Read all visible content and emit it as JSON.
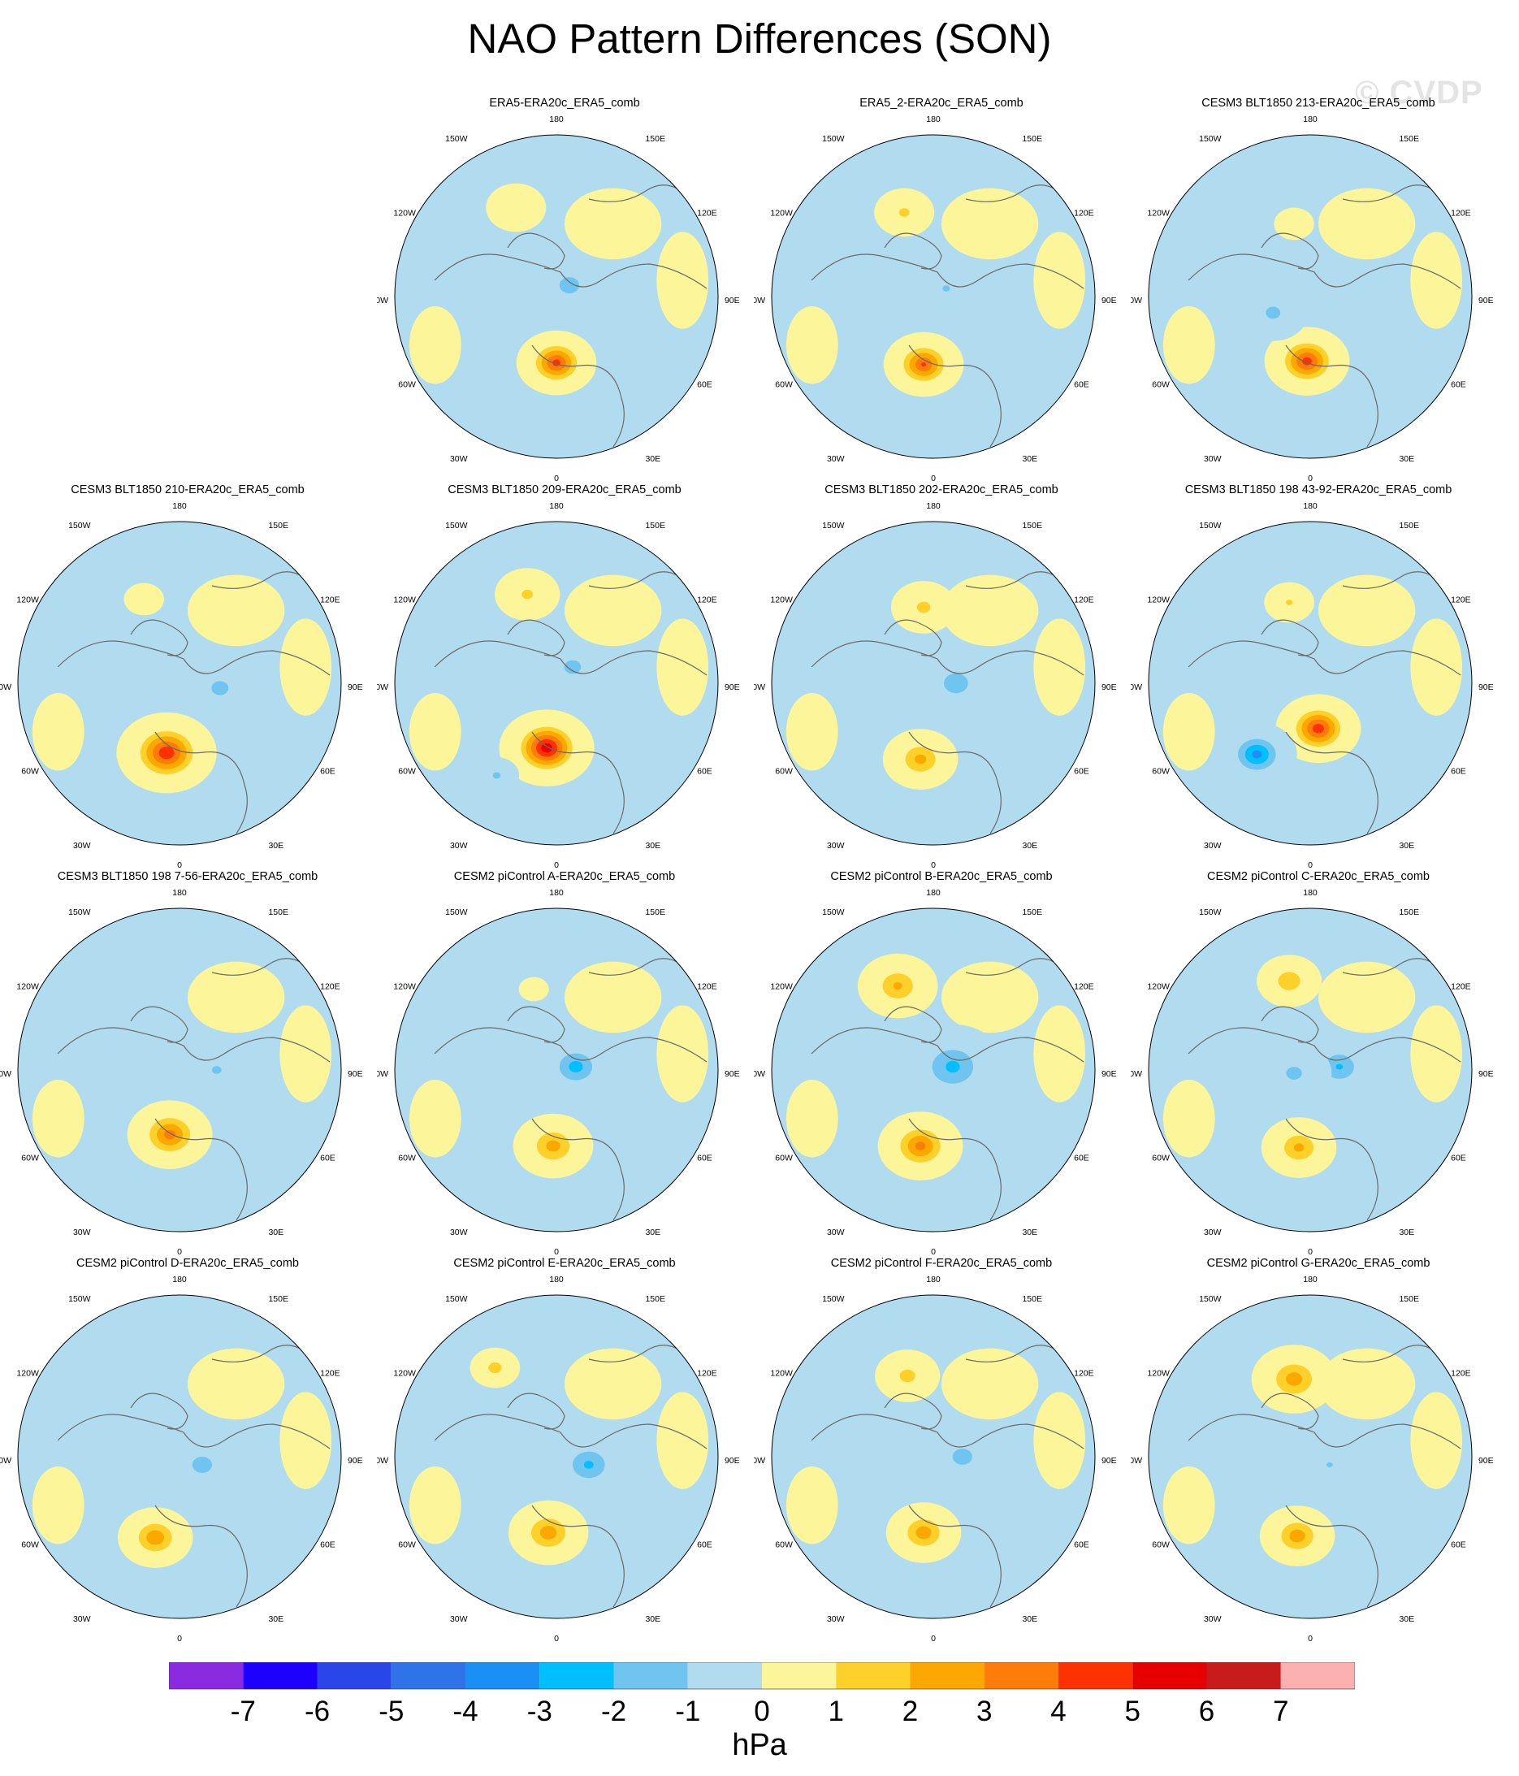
{
  "title": "NAO Pattern Differences (SON)",
  "watermark": "© CVDP",
  "units_label": "hPa",
  "colorbar": {
    "colors": [
      "#8a2be2",
      "#1e00ff",
      "#2a46e8",
      "#2e73e8",
      "#1a8ff5",
      "#00bfff",
      "#70c5f0",
      "#b1dcf0",
      "#fdf59a",
      "#fdd12a",
      "#fda800",
      "#fd7c0a",
      "#fd3200",
      "#e70000",
      "#c81b1b",
      "#fcb0b0"
    ],
    "tick_labels": [
      "-7",
      "-6",
      "-5",
      "-4",
      "-3",
      "-2",
      "-1",
      "0",
      "1",
      "2",
      "3",
      "4",
      "5",
      "6",
      "7"
    ]
  },
  "map_labels": {
    "top": "180",
    "top_left": "150W",
    "top_right": "150E",
    "upper_left": "120W",
    "upper_right": "120E",
    "left": "90W",
    "right": "90E",
    "lower_left": "60W",
    "lower_right": "60E",
    "bottom_left": "30W",
    "bottom_right": "30E",
    "bottom": "0"
  },
  "panels": [
    {
      "title": "ERA5-ERA20c_ERA5_comb",
      "features": [
        {
          "type": "pos",
          "v": 4.5,
          "u": 0.0,
          "w": 0.41,
          "r": 0.16
        },
        {
          "type": "pos",
          "v": 1,
          "u": -0.25,
          "w": -0.55,
          "r": 0.12
        },
        {
          "type": "neg",
          "v": -1.8,
          "u": 0.08,
          "w": -0.07,
          "r": 0.13
        }
      ]
    },
    {
      "title": "ERA5_2-ERA20c_ERA5_comb",
      "features": [
        {
          "type": "pos",
          "v": 4.2,
          "u": -0.06,
          "w": 0.42,
          "r": 0.16
        },
        {
          "type": "pos",
          "v": 1.3,
          "u": -0.18,
          "w": -0.52,
          "r": 0.12
        },
        {
          "type": "neg",
          "v": -1.2,
          "u": 0.08,
          "w": -0.05,
          "r": 0.11
        }
      ]
    },
    {
      "title": "CESM3 BLT1850 213-ERA20c_ERA5_comb",
      "features": [
        {
          "type": "pos",
          "v": 4.6,
          "u": -0.02,
          "w": 0.4,
          "r": 0.17
        },
        {
          "type": "neg",
          "v": -1.4,
          "u": -0.23,
          "w": 0.1,
          "r": 0.14
        },
        {
          "type": "pos",
          "v": 0.8,
          "u": -0.1,
          "w": -0.45,
          "r": 0.08
        }
      ]
    },
    {
      "title": "CESM3 BLT1850 210-ERA20c_ERA5_comb",
      "features": [
        {
          "type": "pos",
          "v": 5.0,
          "u": -0.08,
          "w": 0.43,
          "r": 0.2
        },
        {
          "type": "neg",
          "v": -1.6,
          "u": 0.25,
          "w": 0.03,
          "r": 0.13
        },
        {
          "type": "pos",
          "v": 0.9,
          "u": -0.22,
          "w": -0.52,
          "r": 0.08
        }
      ]
    },
    {
      "title": "CESM3 BLT1850 209-ERA20c_ERA5_comb",
      "features": [
        {
          "type": "pos",
          "v": 5.8,
          "u": -0.06,
          "w": 0.4,
          "r": 0.19
        },
        {
          "type": "neg",
          "v": -1.5,
          "u": 0.1,
          "w": -0.1,
          "r": 0.14
        },
        {
          "type": "pos",
          "v": 1.3,
          "u": -0.18,
          "w": -0.55,
          "r": 0.13
        },
        {
          "type": "neg",
          "v": -1.3,
          "u": -0.37,
          "w": 0.57,
          "r": 0.09
        }
      ]
    },
    {
      "title": "CESM3 BLT1850 202-ERA20c_ERA5_comb",
      "features": [
        {
          "type": "pos",
          "v": 2.5,
          "u": -0.08,
          "w": 0.47,
          "r": 0.15
        },
        {
          "type": "neg",
          "v": -1.9,
          "u": 0.14,
          "w": 0.0,
          "r": 0.15
        },
        {
          "type": "pos",
          "v": 1.4,
          "u": -0.06,
          "w": -0.47,
          "r": 0.13
        }
      ]
    },
    {
      "title": "CESM3 BLT1850 198 43-92-ERA20c_ERA5_comb",
      "features": [
        {
          "type": "pos",
          "v": 4.8,
          "u": 0.05,
          "w": 0.28,
          "r": 0.17
        },
        {
          "type": "neg",
          "v": -3.5,
          "u": -0.33,
          "w": 0.44,
          "r": 0.16
        },
        {
          "type": "pos",
          "v": 1.2,
          "u": -0.13,
          "w": -0.5,
          "r": 0.1
        }
      ]
    },
    {
      "title": "CESM3 BLT1850 198 7-56-ERA20c_ERA5_comb",
      "features": [
        {
          "type": "pos",
          "v": 3.6,
          "u": -0.06,
          "w": 0.4,
          "r": 0.17
        },
        {
          "type": "neg",
          "v": -1.3,
          "u": 0.23,
          "w": 0.0,
          "r": 0.11
        }
      ]
    },
    {
      "title": "CESM2 piControl A-ERA20c_ERA5_comb",
      "features": [
        {
          "type": "pos",
          "v": 2.6,
          "u": -0.02,
          "w": 0.47,
          "r": 0.16
        },
        {
          "type": "neg",
          "v": -2.6,
          "u": 0.12,
          "w": -0.02,
          "r": 0.16
        },
        {
          "type": "pos",
          "v": 1.0,
          "u": -0.14,
          "w": -0.5,
          "r": 0.06
        }
      ]
    },
    {
      "title": "CESM2 piControl B-ERA20c_ERA5_comb",
      "features": [
        {
          "type": "pos",
          "v": 3.5,
          "u": -0.08,
          "w": 0.47,
          "r": 0.17
        },
        {
          "type": "neg",
          "v": -2.4,
          "u": 0.12,
          "w": -0.02,
          "r": 0.21
        },
        {
          "type": "pos",
          "v": 2.3,
          "u": -0.22,
          "w": -0.52,
          "r": 0.16
        }
      ]
    },
    {
      "title": "CESM2 piControl C-ERA20c_ERA5_comb",
      "features": [
        {
          "type": "pos",
          "v": 2.4,
          "u": -0.07,
          "w": 0.48,
          "r": 0.15
        },
        {
          "type": "neg",
          "v": -2.2,
          "u": 0.18,
          "w": -0.02,
          "r": 0.16
        },
        {
          "type": "neg",
          "v": -1.4,
          "u": -0.1,
          "w": 0.02,
          "r": 0.15
        },
        {
          "type": "pos",
          "v": 2.0,
          "u": -0.13,
          "w": -0.55,
          "r": 0.13
        }
      ]
    },
    {
      "title": "CESM2 piControl D-ERA20c_ERA5_comb",
      "features": [
        {
          "type": "pos",
          "v": 3.0,
          "u": -0.15,
          "w": 0.5,
          "r": 0.15
        },
        {
          "type": "neg",
          "v": -1.6,
          "u": 0.14,
          "w": 0.05,
          "r": 0.15
        }
      ]
    },
    {
      "title": "CESM2 piControl E-ERA20c_ERA5_comb",
      "features": [
        {
          "type": "pos",
          "v": 2.8,
          "u": -0.05,
          "w": 0.47,
          "r": 0.16
        },
        {
          "type": "neg",
          "v": -2.3,
          "u": 0.2,
          "w": 0.05,
          "r": 0.17
        },
        {
          "type": "pos",
          "v": 1.6,
          "u": -0.38,
          "w": -0.55,
          "r": 0.1
        },
        {
          "type": "neg",
          "v": -1.0,
          "u": -0.45,
          "w": 0.45,
          "r": 0.1
        }
      ]
    },
    {
      "title": "CESM2 piControl F-ERA20c_ERA5_comb",
      "features": [
        {
          "type": "pos",
          "v": 2.8,
          "u": -0.06,
          "w": 0.47,
          "r": 0.15
        },
        {
          "type": "neg",
          "v": -1.6,
          "u": 0.18,
          "w": 0.0,
          "r": 0.15
        },
        {
          "type": "pos",
          "v": 1.5,
          "u": -0.16,
          "w": -0.5,
          "r": 0.13
        }
      ]
    },
    {
      "title": "CESM2 piControl G-ERA20c_ERA5_comb",
      "features": [
        {
          "type": "pos",
          "v": 2.8,
          "u": -0.08,
          "w": 0.49,
          "r": 0.15
        },
        {
          "type": "pos",
          "v": 2.7,
          "u": -0.1,
          "w": -0.48,
          "r": 0.17
        },
        {
          "type": "neg",
          "v": -1.1,
          "u": 0.12,
          "w": 0.05,
          "r": 0.14
        }
      ]
    }
  ]
}
